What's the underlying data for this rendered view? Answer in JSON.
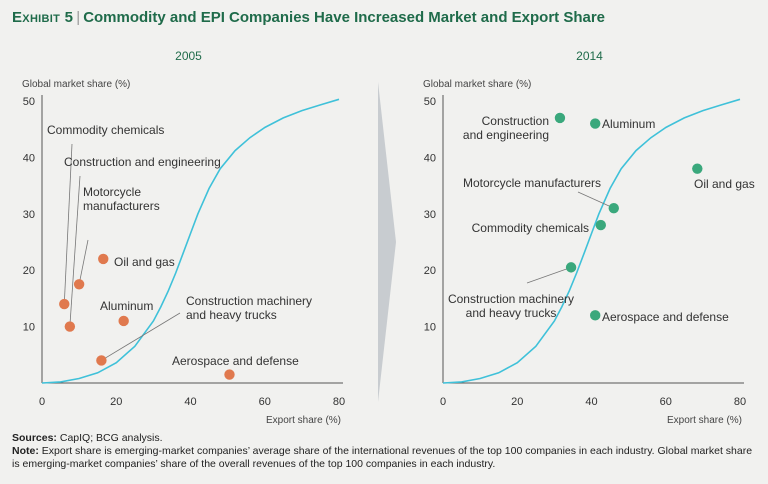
{
  "title": {
    "exhibit": "Exhibit 5",
    "separator": "|",
    "text": "Commodity and EPI Companies Have Increased Market and Export Share"
  },
  "colors": {
    "title_green": "#1f6b4a",
    "curve": "#3fc1d9",
    "point_2005": "#e0794e",
    "point_2014": "#3aa87c",
    "arrow_fill": "#c8ccd0"
  },
  "chart_data": [
    {
      "type": "scatter",
      "title": "2005",
      "xlabel": "Export share (%)",
      "ylabel": "Global market share (%)",
      "xlim": [
        0,
        80
      ],
      "ylim": [
        0,
        50
      ],
      "xticks": [
        0,
        20,
        40,
        60,
        80
      ],
      "yticks": [
        10,
        20,
        30,
        40,
        50
      ],
      "curve": {
        "x": [
          0,
          5,
          10,
          15,
          20,
          25,
          30,
          32,
          34,
          36,
          38,
          40,
          42,
          45,
          48,
          52,
          56,
          60,
          65,
          70,
          75,
          80
        ],
        "y": [
          0,
          0.2,
          0.8,
          1.8,
          3.6,
          6.5,
          11,
          13.5,
          16.3,
          19.5,
          23,
          26.5,
          30,
          34.5,
          38,
          41.2,
          43.5,
          45.3,
          47,
          48.3,
          49.3,
          50.3
        ]
      },
      "points": [
        {
          "label": "Commodity chemicals",
          "x": 6,
          "y": 14
        },
        {
          "label": "Construction and engineering",
          "x": 7.5,
          "y": 10
        },
        {
          "label": "Motorcycle manufacturers",
          "x": 10,
          "y": 17.5
        },
        {
          "label": "Oil and gas",
          "x": 16.5,
          "y": 22
        },
        {
          "label": "Aluminum",
          "x": 22,
          "y": 11
        },
        {
          "label": "Construction machinery and heavy trucks",
          "x": 16,
          "y": 4
        },
        {
          "label": "Aerospace and defense",
          "x": 50.5,
          "y": 1.5
        }
      ]
    },
    {
      "type": "scatter",
      "title": "2014",
      "xlabel": "Export share (%)",
      "ylabel": "Global market share (%)",
      "xlim": [
        0,
        80
      ],
      "ylim": [
        0,
        50
      ],
      "xticks": [
        0,
        20,
        40,
        60,
        80
      ],
      "yticks": [
        10,
        20,
        30,
        40,
        50
      ],
      "curve": {
        "x": [
          0,
          5,
          10,
          15,
          20,
          25,
          30,
          32,
          34,
          36,
          38,
          40,
          42,
          45,
          48,
          52,
          56,
          60,
          65,
          70,
          75,
          80
        ],
        "y": [
          0,
          0.2,
          0.8,
          1.8,
          3.6,
          6.5,
          11,
          13.5,
          16.3,
          19.5,
          23,
          26.5,
          30,
          34.5,
          38,
          41.2,
          43.5,
          45.3,
          47,
          48.3,
          49.3,
          50.3
        ]
      },
      "points": [
        {
          "label": "Construction and engineering",
          "x": 31.5,
          "y": 47
        },
        {
          "label": "Aluminum",
          "x": 41,
          "y": 46
        },
        {
          "label": "Oil and gas",
          "x": 68.5,
          "y": 38
        },
        {
          "label": "Motorcycle manufacturers",
          "x": 46,
          "y": 31
        },
        {
          "label": "Commodity chemicals",
          "x": 42.5,
          "y": 28
        },
        {
          "label": "Construction machinery and heavy trucks",
          "x": 34.5,
          "y": 20.5
        },
        {
          "label": "Aerospace and defense",
          "x": 41,
          "y": 12
        }
      ]
    }
  ],
  "footer": {
    "sources_label": "Sources:",
    "sources_text": " CapIQ; BCG analysis.",
    "note_label": "Note:",
    "note_text": " Export share is emerging-market companies’ average share of the international revenues of the top 100 companies in each industry. Global market share is emerging-market companies’ share of the overall revenues of the top 100 companies in each industry."
  }
}
